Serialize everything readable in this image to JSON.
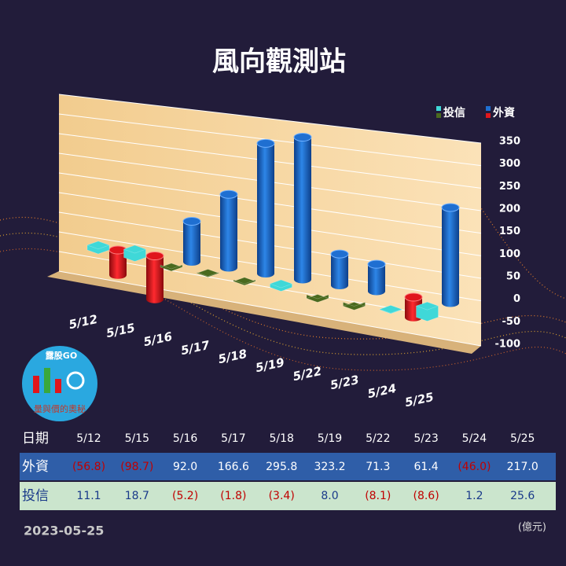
{
  "chart_data": {
    "type": "bar",
    "title": "風向觀測站",
    "categories": [
      "5/12",
      "5/15",
      "5/16",
      "5/17",
      "5/18",
      "5/19",
      "5/22",
      "5/23",
      "5/24",
      "5/25"
    ],
    "series": [
      {
        "name": "投信",
        "color": "#3fd8d8",
        "negative_color": "#4a6a1e",
        "values": [
          11.1,
          18.7,
          -5.2,
          -1.8,
          -3.4,
          8.0,
          -8.1,
          -8.6,
          1.2,
          25.6
        ],
        "value_labels": [
          "11.1",
          "18.7",
          "(5.2)",
          "(1.8)",
          "(3.4)",
          "8.0",
          "(8.1)",
          "(8.6)",
          "1.2",
          "25.6"
        ]
      },
      {
        "name": "外資",
        "color": "#1f6fd1",
        "negative_color": "#e0161c",
        "values": [
          -56.8,
          -98.7,
          92.0,
          166.6,
          295.8,
          323.2,
          71.3,
          61.4,
          -46.0,
          217.0
        ],
        "value_labels": [
          "(56.8)",
          "(98.7)",
          "92.0",
          "166.6",
          "295.8",
          "323.2",
          "71.3",
          "61.4",
          "(46.0)",
          "217.0"
        ]
      }
    ],
    "ylim": [
      -100,
      350
    ],
    "yticks": [
      -100,
      -50,
      0,
      50,
      100,
      150,
      200,
      250,
      300,
      350
    ],
    "grid": true,
    "table_header": "日期",
    "date": "2023-05-25",
    "unit": "(億元)",
    "logo": "露股GO",
    "logo_caption": "量與價的奧秘"
  }
}
